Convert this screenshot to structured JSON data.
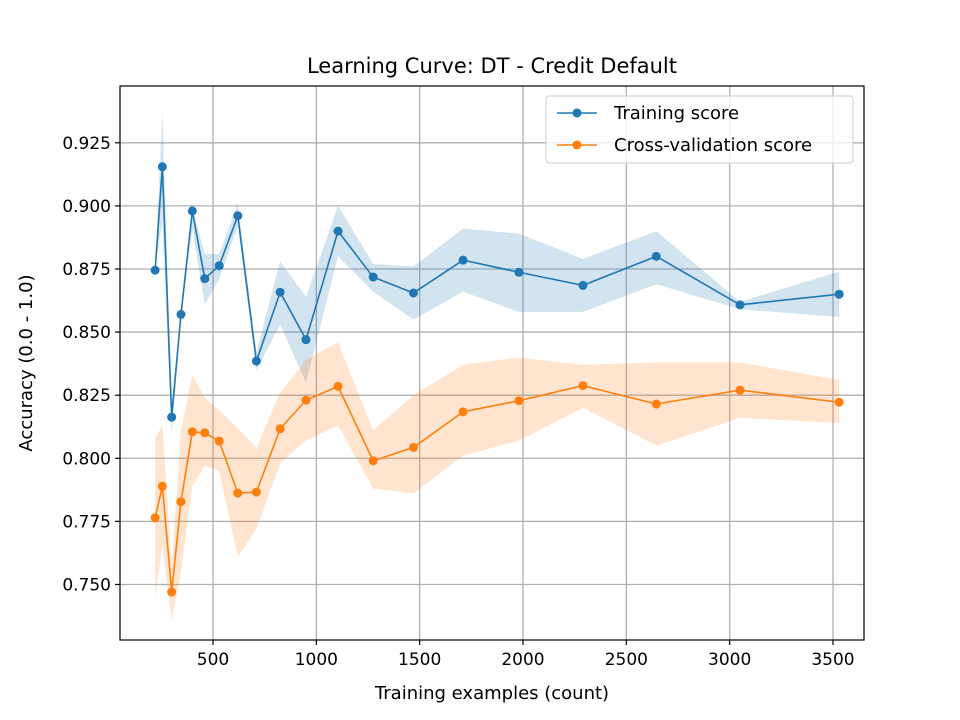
{
  "chart_data": {
    "type": "line",
    "title": "Learning Curve: DT - Credit Default",
    "xlabel": "Training examples (count)",
    "ylabel": "Accuracy (0.0 - 1.0)",
    "xlim": [
      50,
      3650
    ],
    "ylim": [
      0.728,
      0.9475
    ],
    "xticks": [
      500,
      1000,
      1500,
      2000,
      2500,
      3000,
      3500
    ],
    "yticks": [
      0.75,
      0.775,
      0.8,
      0.825,
      0.85,
      0.875,
      0.9,
      0.925
    ],
    "xtick_labels": [
      "500",
      "1000",
      "1500",
      "2000",
      "2500",
      "3000",
      "3500"
    ],
    "ytick_labels": [
      "0.750",
      "0.775",
      "0.800",
      "0.825",
      "0.850",
      "0.875",
      "0.900",
      "0.925"
    ],
    "grid": true,
    "legend_position": "upper right",
    "x": [
      220,
      255,
      300,
      345,
      400,
      460,
      530,
      620,
      710,
      825,
      950,
      1105,
      1275,
      1470,
      1710,
      1980,
      2290,
      2645,
      3050,
      3530
    ],
    "series": [
      {
        "name": "Training score",
        "color": "#1f77b4",
        "values": [
          0.8745,
          0.9155,
          0.8163,
          0.857,
          0.898,
          0.8712,
          0.8763,
          0.8961,
          0.8385,
          0.8658,
          0.847,
          0.89,
          0.8718,
          0.8655,
          0.8785,
          0.8737,
          0.8685,
          0.88,
          0.8608,
          0.865
        ],
        "band_upper": [
          0.8745,
          0.937,
          0.822,
          0.858,
          0.899,
          0.881,
          0.881,
          0.901,
          0.842,
          0.878,
          0.864,
          0.9,
          0.877,
          0.876,
          0.891,
          0.889,
          0.879,
          0.89,
          0.862,
          0.874
        ],
        "band_lower": [
          0.8745,
          0.894,
          0.809,
          0.856,
          0.891,
          0.861,
          0.871,
          0.892,
          0.835,
          0.853,
          0.83,
          0.88,
          0.866,
          0.855,
          0.866,
          0.858,
          0.858,
          0.869,
          0.859,
          0.856
        ]
      },
      {
        "name": "Cross-validation score",
        "color": "#ff7f0e",
        "values": [
          0.7764,
          0.7889,
          0.747,
          0.7828,
          0.8105,
          0.8101,
          0.8068,
          0.7862,
          0.7866,
          0.8117,
          0.823,
          0.8285,
          0.799,
          0.8043,
          0.8184,
          0.8228,
          0.8288,
          0.8215,
          0.827,
          0.8222
        ],
        "band_upper": [
          0.808,
          0.813,
          0.758,
          0.811,
          0.833,
          0.824,
          0.819,
          0.812,
          0.804,
          0.826,
          0.839,
          0.846,
          0.811,
          0.825,
          0.837,
          0.84,
          0.837,
          0.838,
          0.838,
          0.831
        ],
        "band_lower": [
          0.745,
          0.765,
          0.736,
          0.755,
          0.789,
          0.797,
          0.795,
          0.761,
          0.772,
          0.798,
          0.807,
          0.813,
          0.788,
          0.786,
          0.801,
          0.807,
          0.82,
          0.805,
          0.816,
          0.814
        ]
      }
    ]
  }
}
